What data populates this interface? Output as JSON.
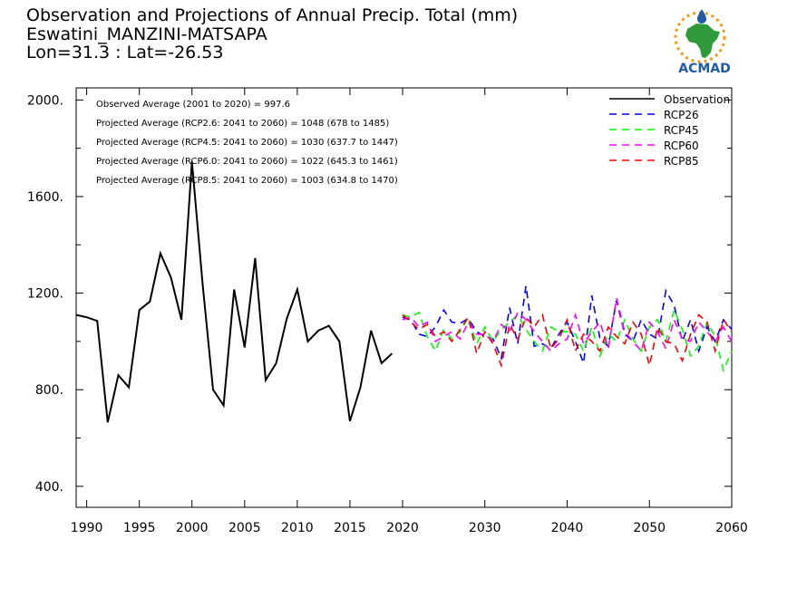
{
  "title": {
    "line1": "Observation and Projections of Annual Precip. Total (mm)",
    "line2": "Eswatini_MANZINI-MATSAPA",
    "line3": "Lon=31.3 : Lat=-26.53"
  },
  "logo": {
    "text": "ACMAD",
    "colors": {
      "green": "#2e9a3a",
      "orange": "#f39c12",
      "blue": "#1e5aa8"
    }
  },
  "annotations": [
    "Observed Average (2001 to 2020) = 997.6",
    "Projected Average (RCP2.6: 2041 to 2060) = 1048 (678 to 1485)",
    "Projected Average (RCP4.5: 2041 to 2060) = 1030 (637.7 to 1447)",
    "Projected Average (RCP6.0: 2041 to 2060) = 1022 (645.3 to 1461)",
    "Projected Average (RCP8.5: 2041 to 2060) = 1003 (634.8 to 1470)"
  ],
  "chart_data": {
    "type": "line",
    "ylim": [
      313,
      2050
    ],
    "yticks": [
      400,
      800,
      1200,
      1600,
      2000
    ],
    "ytick_labels": [
      "400.",
      "800.",
      "1200.",
      "1600.",
      "2000."
    ],
    "obs_xlim": [
      1989,
      2020
    ],
    "obs_xticks": [
      1990,
      1995,
      2000,
      2005,
      2010,
      2015,
      2020
    ],
    "proj_xlim": [
      2020,
      2060
    ],
    "proj_xticks": [
      2030,
      2040,
      2050,
      2060
    ],
    "legend_position": "top-right",
    "series": [
      {
        "name": "Observation",
        "color": "#000000",
        "dash": "solid",
        "panel": "obs",
        "x": [
          1989,
          1990,
          1991,
          1992,
          1993,
          1994,
          1995,
          1996,
          1997,
          1998,
          1999,
          2000,
          2001,
          2002,
          2003,
          2004,
          2005,
          2006,
          2007,
          2008,
          2009,
          2010,
          2011,
          2012,
          2013,
          2014,
          2015,
          2016,
          2017,
          2018,
          2019,
          2020
        ],
        "values": [
          1110,
          1100,
          1085,
          665,
          860,
          810,
          1130,
          1165,
          1365,
          1265,
          1090,
          1745,
          1240,
          800,
          735,
          1215,
          975,
          1345,
          840,
          910,
          1095,
          1215,
          1000,
          1045,
          1065,
          1000,
          670,
          810,
          1045,
          910,
          950,
          null
        ]
      },
      {
        "name": "RCP26",
        "color": "#0000ff",
        "dash": "8,6",
        "panel": "proj",
        "x": [
          2020,
          2021,
          2022,
          2023,
          2024,
          2025,
          2026,
          2027,
          2028,
          2029,
          2030,
          2031,
          2032,
          2033,
          2034,
          2035,
          2036,
          2037,
          2038,
          2039,
          2040,
          2041,
          2042,
          2043,
          2044,
          2045,
          2046,
          2047,
          2048,
          2049,
          2050,
          2051,
          2052,
          2053,
          2054,
          2055,
          2056,
          2057,
          2058,
          2059,
          2060
        ],
        "values": [
          1100,
          1090,
          1030,
          1020,
          1060,
          1130,
          1080,
          1075,
          1095,
          1040,
          1020,
          1010,
          930,
          1140,
          990,
          1230,
          980,
          990,
          970,
          1030,
          1080,
          1000,
          910,
          1190,
          1010,
          980,
          1170,
          1030,
          1000,
          1090,
          1030,
          1010,
          1210,
          1150,
          1000,
          1090,
          960,
          1060,
          1000,
          1090,
          1050
        ]
      },
      {
        "name": "RCP45",
        "color": "#00ff00",
        "dash": "8,6",
        "panel": "proj",
        "x": [
          2020,
          2021,
          2022,
          2023,
          2024,
          2025,
          2026,
          2027,
          2028,
          2029,
          2030,
          2031,
          2032,
          2033,
          2034,
          2035,
          2036,
          2037,
          2038,
          2039,
          2040,
          2041,
          2042,
          2043,
          2044,
          2045,
          2046,
          2047,
          2048,
          2049,
          2050,
          2051,
          2052,
          2053,
          2054,
          2055,
          2056,
          2057,
          2058,
          2059,
          2060
        ],
        "values": [
          1110,
          1100,
          1120,
          1020,
          960,
          1050,
          1010,
          1040,
          1100,
          990,
          1060,
          1000,
          1050,
          1080,
          1110,
          1050,
          1000,
          960,
          1060,
          1040,
          1040,
          1030,
          960,
          1060,
          940,
          1030,
          1000,
          1090,
          1010,
          960,
          1060,
          1090,
          1000,
          1130,
          1050,
          940,
          980,
          1080,
          1020,
          880,
          960
        ]
      },
      {
        "name": "RCP60",
        "color": "#ff00ff",
        "dash": "8,6",
        "panel": "proj",
        "x": [
          2020,
          2021,
          2022,
          2023,
          2024,
          2025,
          2026,
          2027,
          2028,
          2029,
          2030,
          2031,
          2032,
          2033,
          2034,
          2035,
          2036,
          2037,
          2038,
          2039,
          2040,
          2041,
          2042,
          2043,
          2044,
          2045,
          2046,
          2047,
          2048,
          2049,
          2050,
          2051,
          2052,
          2053,
          2054,
          2055,
          2056,
          2057,
          2058,
          2059,
          2060
        ],
        "values": [
          1090,
          1100,
          1060,
          1080,
          1000,
          1020,
          1040,
          1010,
          1080,
          1030,
          1030,
          1000,
          1070,
          1040,
          1120,
          1090,
          1040,
          1000,
          960,
          990,
          1010,
          1110,
          990,
          1040,
          1080,
          970,
          1180,
          1040,
          1000,
          960,
          1080,
          1040,
          970,
          1090,
          1010,
          1000,
          1080,
          1040,
          1000,
          1060,
          1000
        ]
      },
      {
        "name": "RCP85",
        "color": "#ff0000",
        "dash": "8,6",
        "panel": "proj",
        "x": [
          2020,
          2021,
          2022,
          2023,
          2024,
          2025,
          2026,
          2027,
          2028,
          2029,
          2030,
          2031,
          2032,
          2033,
          2034,
          2035,
          2036,
          2037,
          2038,
          2039,
          2040,
          2041,
          2042,
          2043,
          2044,
          2045,
          2046,
          2047,
          2048,
          2049,
          2050,
          2051,
          2052,
          2053,
          2054,
          2055,
          2056,
          2057,
          2058,
          2059,
          2060
        ],
        "values": [
          1110,
          1080,
          1050,
          1070,
          1020,
          1040,
          1000,
          1050,
          1100,
          950,
          1040,
          990,
          900,
          1070,
          1010,
          1100,
          1060,
          1110,
          970,
          1010,
          1090,
          960,
          1030,
          1000,
          960,
          1060,
          1020,
          990,
          1080,
          1030,
          900,
          1060,
          1000,
          990,
          920,
          1030,
          1110,
          1080,
          960,
          1090,
          1040
        ]
      }
    ]
  }
}
